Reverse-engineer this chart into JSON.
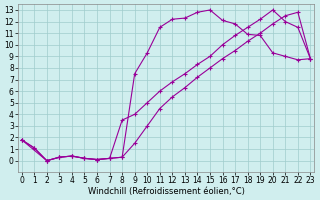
{
  "xlabel": "Windchill (Refroidissement éolien,°C)",
  "bg_color": "#d0eeee",
  "grid_color": "#a0cccc",
  "line_color": "#990099",
  "marker": "+",
  "markersize": 3,
  "linewidth": 0.8,
  "xlim": [
    -0.3,
    23.3
  ],
  "ylim": [
    -1,
    13.5
  ],
  "xticks": [
    0,
    1,
    2,
    3,
    4,
    5,
    6,
    7,
    8,
    9,
    10,
    11,
    12,
    13,
    14,
    15,
    16,
    17,
    18,
    19,
    20,
    21,
    22,
    23
  ],
  "yticks": [
    0,
    1,
    2,
    3,
    4,
    5,
    6,
    7,
    8,
    9,
    10,
    11,
    12,
    13
  ],
  "font_size": 6.0,
  "tick_font_size": 5.5,
  "curve1_x": [
    0,
    1,
    2,
    3,
    4,
    5,
    6,
    7,
    8,
    9,
    10,
    11,
    12,
    13,
    14,
    15,
    16,
    17,
    18,
    19,
    20,
    21,
    22,
    23
  ],
  "curve1_y": [
    1.8,
    1.1,
    0.0,
    0.3,
    0.4,
    0.2,
    0.1,
    0.2,
    0.3,
    7.5,
    9.3,
    11.5,
    12.2,
    12.3,
    12.8,
    13.0,
    12.1,
    11.8,
    10.9,
    10.8,
    9.3,
    9.0,
    8.7,
    8.8
  ],
  "curve2_x": [
    0,
    2,
    3,
    4,
    5,
    6,
    7,
    8,
    9,
    10,
    11,
    12,
    13,
    14,
    15,
    16,
    17,
    18,
    19,
    20,
    21,
    22,
    23
  ],
  "curve2_y": [
    1.8,
    0.0,
    0.3,
    0.4,
    0.2,
    0.1,
    0.2,
    3.5,
    4.0,
    5.0,
    6.0,
    6.8,
    7.5,
    8.3,
    9.0,
    10.0,
    10.8,
    11.5,
    12.2,
    13.0,
    12.0,
    11.5,
    8.8
  ],
  "curve3_x": [
    0,
    1,
    2,
    3,
    4,
    5,
    6,
    7,
    8,
    9,
    10,
    11,
    12,
    13,
    14,
    15,
    16,
    17,
    18,
    19,
    20,
    21,
    22,
    23
  ],
  "curve3_y": [
    1.8,
    1.1,
    0.0,
    0.3,
    0.4,
    0.2,
    0.1,
    0.2,
    0.3,
    1.5,
    3.0,
    4.5,
    5.5,
    6.3,
    7.2,
    8.0,
    8.8,
    9.5,
    10.3,
    11.0,
    11.8,
    12.5,
    12.8,
    8.8
  ]
}
